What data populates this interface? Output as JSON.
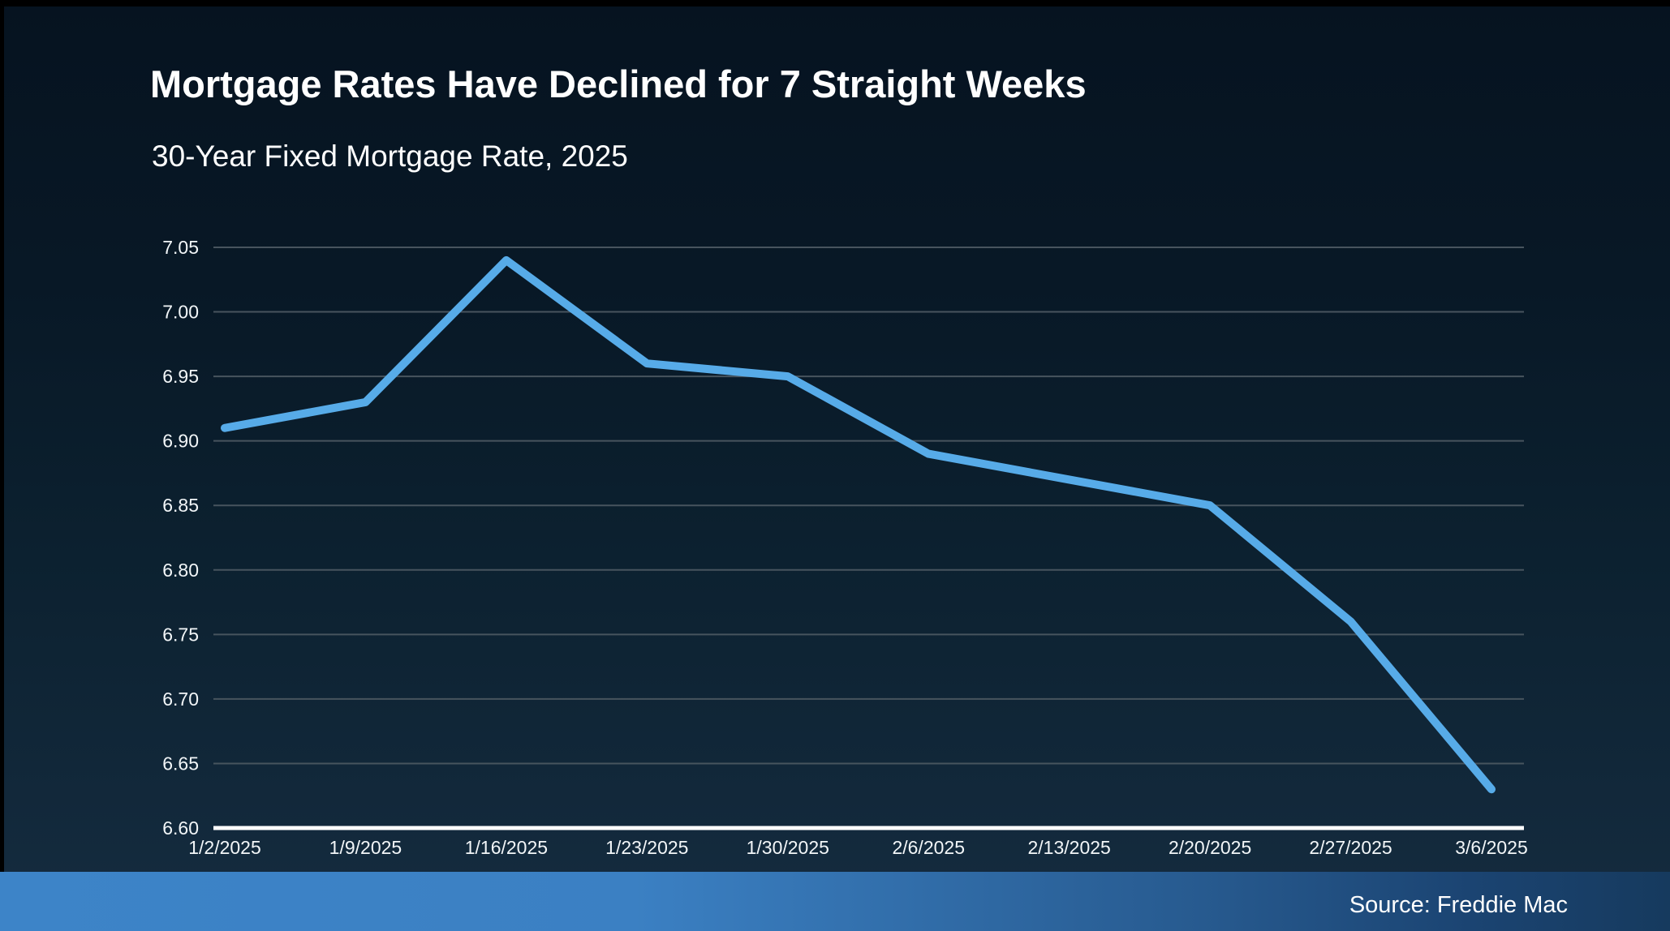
{
  "slide": {
    "title": "Mortgage Rates Have Declined for 7 Straight Weeks",
    "subtitle": "30-Year Fixed Mortgage Rate, 2025",
    "source": "Source: Freddie Mac"
  },
  "colors": {
    "background_top": "#061320",
    "background_bottom": "#152c40",
    "line": "#57abe8",
    "gridline": "#47545e",
    "axis_line": "#ffffff",
    "tick_text": "#f2f6f8",
    "footer_gradient_left": "#3d84c8",
    "footer_gradient_right": "#163a5e"
  },
  "chart_data": {
    "type": "line",
    "title": "Mortgage Rates Have Declined for 7 Straight Weeks",
    "subtitle": "30-Year Fixed Mortgage Rate, 2025",
    "categories": [
      "1/2/2025",
      "1/9/2025",
      "1/16/2025",
      "1/23/2025",
      "1/30/2025",
      "2/6/2025",
      "2/13/2025",
      "2/20/2025",
      "2/27/2025",
      "3/6/2025"
    ],
    "series": [
      {
        "name": "30-Year Fixed Mortgage Rate",
        "values": [
          6.91,
          6.93,
          7.04,
          6.96,
          6.95,
          6.89,
          6.87,
          6.85,
          6.76,
          6.63
        ]
      }
    ],
    "xlabel": "",
    "ylabel": "",
    "ylim": [
      6.6,
      7.05
    ],
    "ytick_step": 0.05,
    "ytick_labels": [
      "6.60",
      "6.65",
      "6.70",
      "6.75",
      "6.80",
      "6.85",
      "6.90",
      "6.95",
      "7.00",
      "7.05"
    ],
    "grid": true,
    "legend_position": "none",
    "source": "Source: Freddie Mac"
  }
}
